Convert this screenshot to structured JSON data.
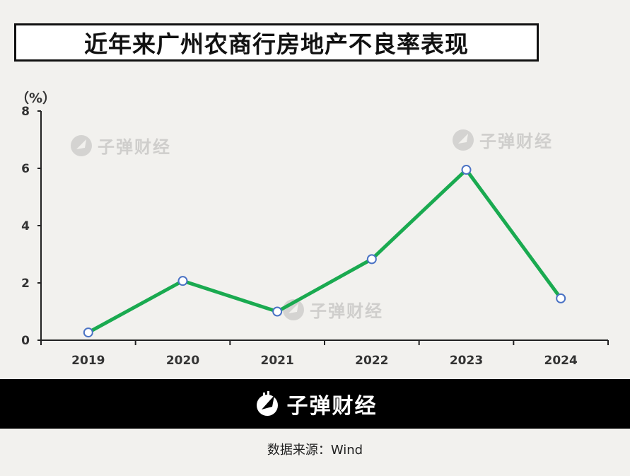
{
  "title": "近年来广州农商行房地产不良率表现",
  "brand": "子弹财经",
  "source": "数据来源：Wind",
  "colors": {
    "line": "#1aaa50",
    "marker_stroke": "#4a72c4",
    "marker_fill": "#ffffff",
    "axis": "#222222"
  },
  "chart_data": {
    "type": "line",
    "ylabel": "（%）",
    "ylim": [
      0,
      8
    ],
    "yticks": [
      0,
      2,
      4,
      6,
      8
    ],
    "categories": [
      "2019",
      "2020",
      "2021",
      "2022",
      "2023",
      "2024"
    ],
    "series": [
      {
        "values": [
          0.27,
          2.07,
          1.0,
          2.83,
          5.95,
          1.46
        ]
      }
    ],
    "grid": false,
    "legend": "none"
  }
}
